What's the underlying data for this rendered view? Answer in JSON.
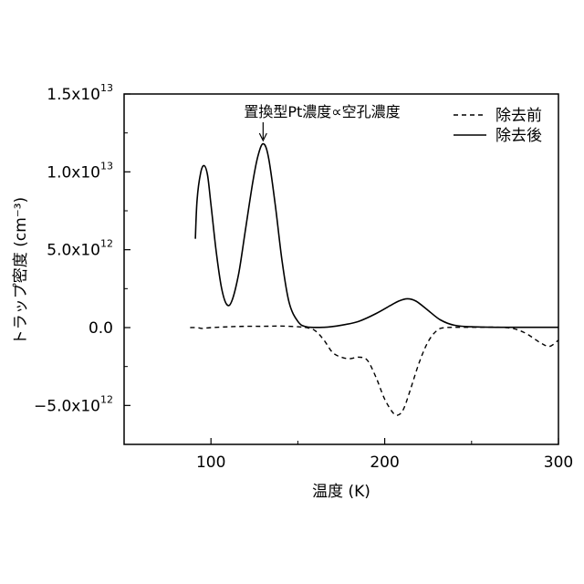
{
  "chart_data": {
    "type": "line",
    "title": "",
    "xlabel": "温度 (K)",
    "ylabel": "トラップ密度 (cm⁻³)",
    "xlim": [
      50,
      300
    ],
    "ylim": [
      -7500000000000.0,
      15000000000000.0
    ],
    "x_ticks": [
      {
        "value": 100,
        "label": "100"
      },
      {
        "value": 200,
        "label": "200"
      },
      {
        "value": 300,
        "label": "300"
      }
    ],
    "y_ticks": [
      {
        "value": 15000000000000.0,
        "mantissa": "1.5x10",
        "exponent": "13"
      },
      {
        "value": 10000000000000.0,
        "mantissa": "1.0x10",
        "exponent": "13"
      },
      {
        "value": 5000000000000.0,
        "mantissa": "5.0x10",
        "exponent": "12"
      },
      {
        "value": 0,
        "mantissa": "0.0",
        "exponent": ""
      },
      {
        "value": -5000000000000.0,
        "mantissa": "−5.0x10",
        "exponent": "12"
      }
    ],
    "grid": false,
    "legend_position": "top-right",
    "series": [
      {
        "name": "除去前",
        "style": "dashed",
        "color": "#000000",
        "points": [
          [
            88,
            0
          ],
          [
            92,
            0
          ],
          [
            95,
            -50000000000.0
          ],
          [
            100,
            0
          ],
          [
            110,
            50000000000.0
          ],
          [
            120,
            80000000000.0
          ],
          [
            130,
            80000000000.0
          ],
          [
            140,
            100000000000.0
          ],
          [
            150,
            50000000000.0
          ],
          [
            155,
            0
          ],
          [
            160,
            -200000000000.0
          ],
          [
            165,
            -800000000000.0
          ],
          [
            170,
            -1600000000000.0
          ],
          [
            175,
            -1900000000000.0
          ],
          [
            180,
            -2000000000000.0
          ],
          [
            185,
            -1900000000000.0
          ],
          [
            190,
            -2100000000000.0
          ],
          [
            195,
            -3200000000000.0
          ],
          [
            200,
            -4600000000000.0
          ],
          [
            205,
            -5500000000000.0
          ],
          [
            208,
            -5600000000000.0
          ],
          [
            211,
            -5200000000000.0
          ],
          [
            215,
            -3900000000000.0
          ],
          [
            220,
            -2200000000000.0
          ],
          [
            225,
            -900000000000.0
          ],
          [
            230,
            -200000000000.0
          ],
          [
            235,
            0
          ],
          [
            250,
            20000000000.0
          ],
          [
            270,
            0
          ],
          [
            280,
            -300000000000.0
          ],
          [
            290,
            -1000000000000.0
          ],
          [
            295,
            -1200000000000.0
          ],
          [
            300,
            -800000000000.0
          ]
        ]
      },
      {
        "name": "除去後",
        "style": "solid",
        "color": "#000000",
        "points": [
          [
            91,
            5700000000000.0
          ],
          [
            92,
            8200000000000.0
          ],
          [
            94,
            9900000000000.0
          ],
          [
            96,
            10400000000000.0
          ],
          [
            98,
            9800000000000.0
          ],
          [
            100,
            7900000000000.0
          ],
          [
            103,
            4900000000000.0
          ],
          [
            106,
            2600000000000.0
          ],
          [
            109,
            1500000000000.0
          ],
          [
            112,
            1700000000000.0
          ],
          [
            116,
            3500000000000.0
          ],
          [
            120,
            6400000000000.0
          ],
          [
            124,
            9300000000000.0
          ],
          [
            127,
            11000000000000.0
          ],
          [
            130,
            11800000000000.0
          ],
          [
            133,
            11000000000000.0
          ],
          [
            137,
            7900000000000.0
          ],
          [
            141,
            4200000000000.0
          ],
          [
            145,
            1600000000000.0
          ],
          [
            150,
            400000000000.0
          ],
          [
            155,
            50000000000.0
          ],
          [
            165,
            20000000000.0
          ],
          [
            175,
            150000000000.0
          ],
          [
            185,
            400000000000.0
          ],
          [
            195,
            900000000000.0
          ],
          [
            203,
            1400000000000.0
          ],
          [
            208,
            1700000000000.0
          ],
          [
            213,
            1850000000000.0
          ],
          [
            218,
            1700000000000.0
          ],
          [
            225,
            1100000000000.0
          ],
          [
            232,
            500000000000.0
          ],
          [
            240,
            150000000000.0
          ],
          [
            250,
            50000000000.0
          ],
          [
            265,
            20000000000.0
          ],
          [
            280,
            20000000000.0
          ],
          [
            300,
            20000000000.0
          ]
        ]
      }
    ],
    "annotations": [
      {
        "text": "置換型Pt濃度∝空孔濃度",
        "arrow_x": 130,
        "arrow_y": 12000000000000.0
      }
    ]
  }
}
